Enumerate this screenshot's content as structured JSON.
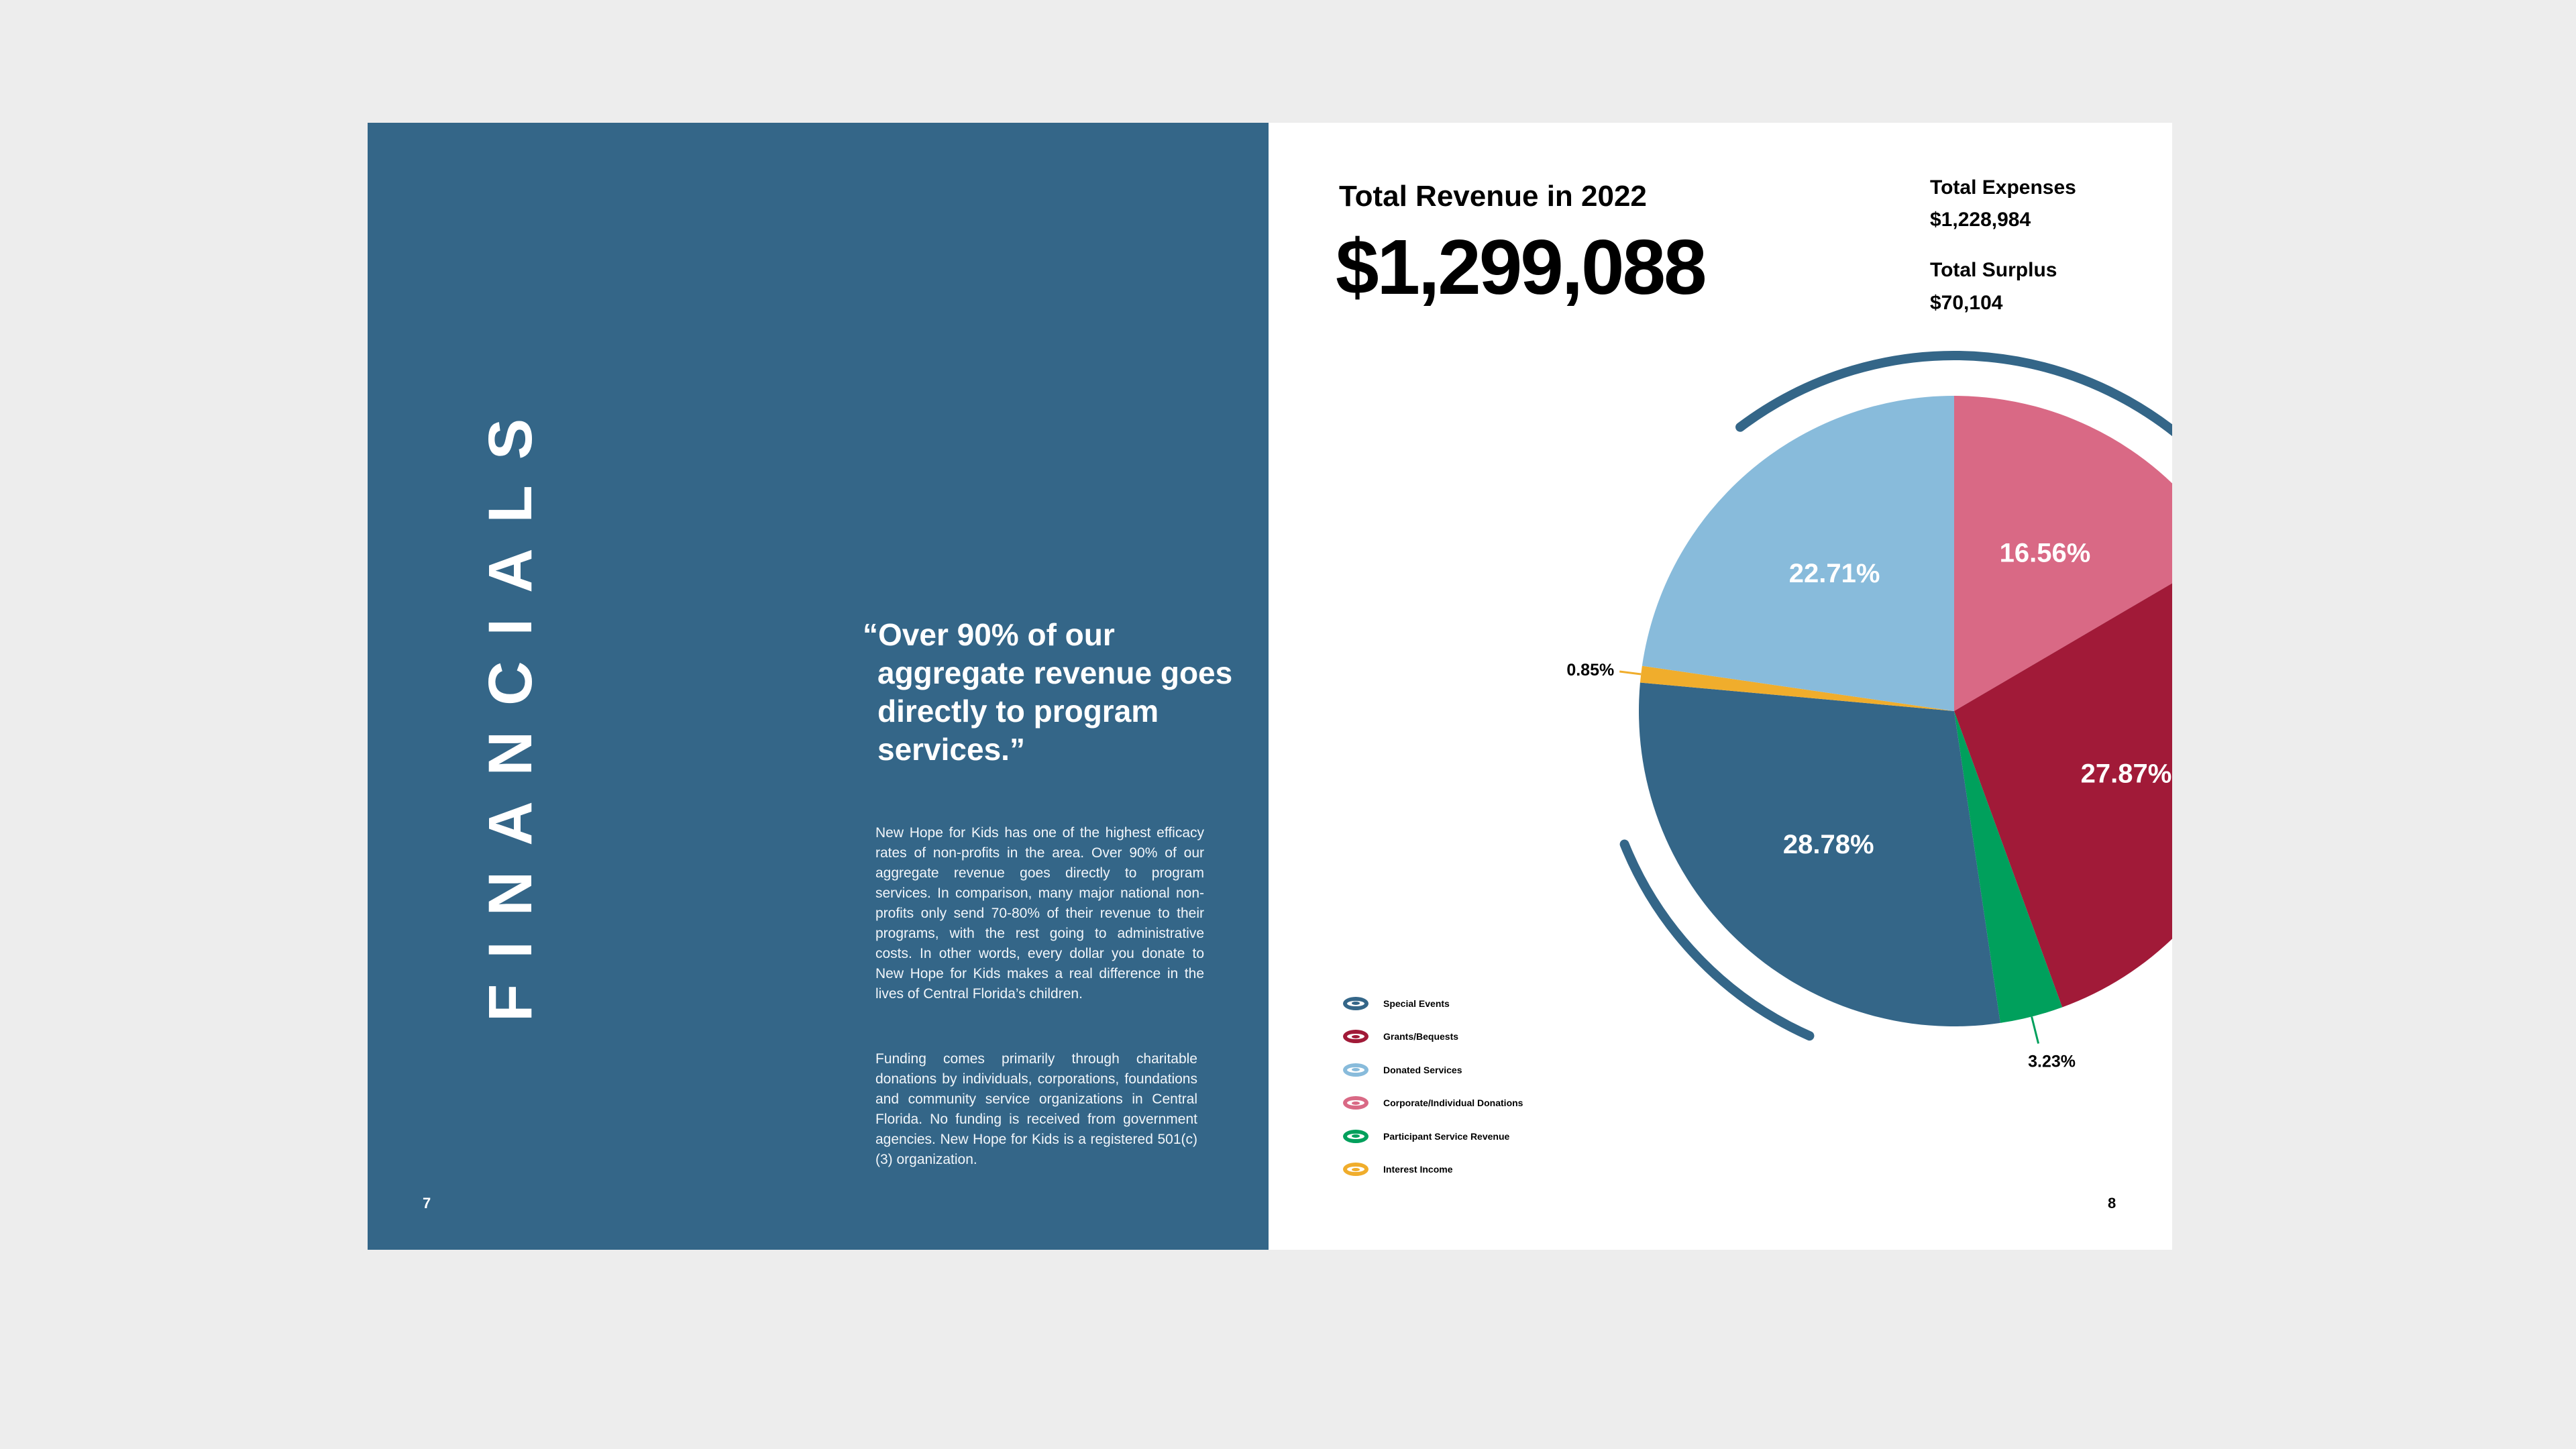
{
  "left_page": {
    "section_title": "FINANCIALS",
    "page_number": "7",
    "quote": "“Over 90% of our aggregate revenue goes directly to program services.”",
    "paragraph1": "New Hope for Kids has one of the highest efficacy rates of non-profits in the area. Over 90% of our aggregate revenue goes directly to program services. In comparison, many major national non-profits only send 70-80% of their revenue to their programs, with the rest going to administrative costs. In other words, every dollar you donate to New Hope for Kids makes a real difference in the lives of Central Florida’s children.",
    "paragraph2": "Funding comes primarily through charitable donations by individuals, corporations, foundations and community service organizations in Central Florida. No funding is received from government agencies. New Hope for Kids is a registered 501(c)(3) organization."
  },
  "right_page": {
    "revenue_title": "Total Revenue in 2022",
    "revenue_value": "$1,299,088",
    "expenses_label": "Total Expenses",
    "expenses_value": "$1,228,984",
    "surplus_label": "Total Surplus",
    "surplus_value": "$70,104",
    "page_number": "8"
  },
  "colors": {
    "page_blue": "#346688",
    "special_events": "#346688",
    "grants": "#a11a38",
    "donated": "#88bbdb",
    "corporate": "#d96985",
    "participant": "#00a05c",
    "interest": "#f0ad2c"
  },
  "chart_data": {
    "type": "pie",
    "title": "Total Revenue in 2022",
    "series": [
      {
        "name": "Corporate/Individual Donations",
        "value": 16.56,
        "label": "16.56%",
        "color": "#d96985"
      },
      {
        "name": "Grants/Bequests",
        "value": 27.87,
        "label": "27.87%",
        "color": "#a11a38"
      },
      {
        "name": "Participant Service Revenue",
        "value": 3.23,
        "label": "3.23%",
        "color": "#00a05c"
      },
      {
        "name": "Special Events",
        "value": 28.78,
        "label": "28.78%",
        "color": "#346688"
      },
      {
        "name": "Interest Income",
        "value": 0.85,
        "label": "0.85%",
        "color": "#f0ad2c"
      },
      {
        "name": "Donated Services",
        "value": 22.71,
        "label": "22.71%",
        "color": "#88bbdb"
      }
    ],
    "legend": [
      {
        "name": "Special Events",
        "color": "#346688"
      },
      {
        "name": "Grants/Bequests",
        "color": "#a11a38"
      },
      {
        "name": "Donated Services",
        "color": "#88bbdb"
      },
      {
        "name": "Corporate/Individual Donations",
        "color": "#d96985"
      },
      {
        "name": "Participant Service Revenue",
        "color": "#00a05c"
      },
      {
        "name": "Interest Income",
        "color": "#f0ad2c"
      }
    ],
    "legend_position": "bottom-left"
  }
}
